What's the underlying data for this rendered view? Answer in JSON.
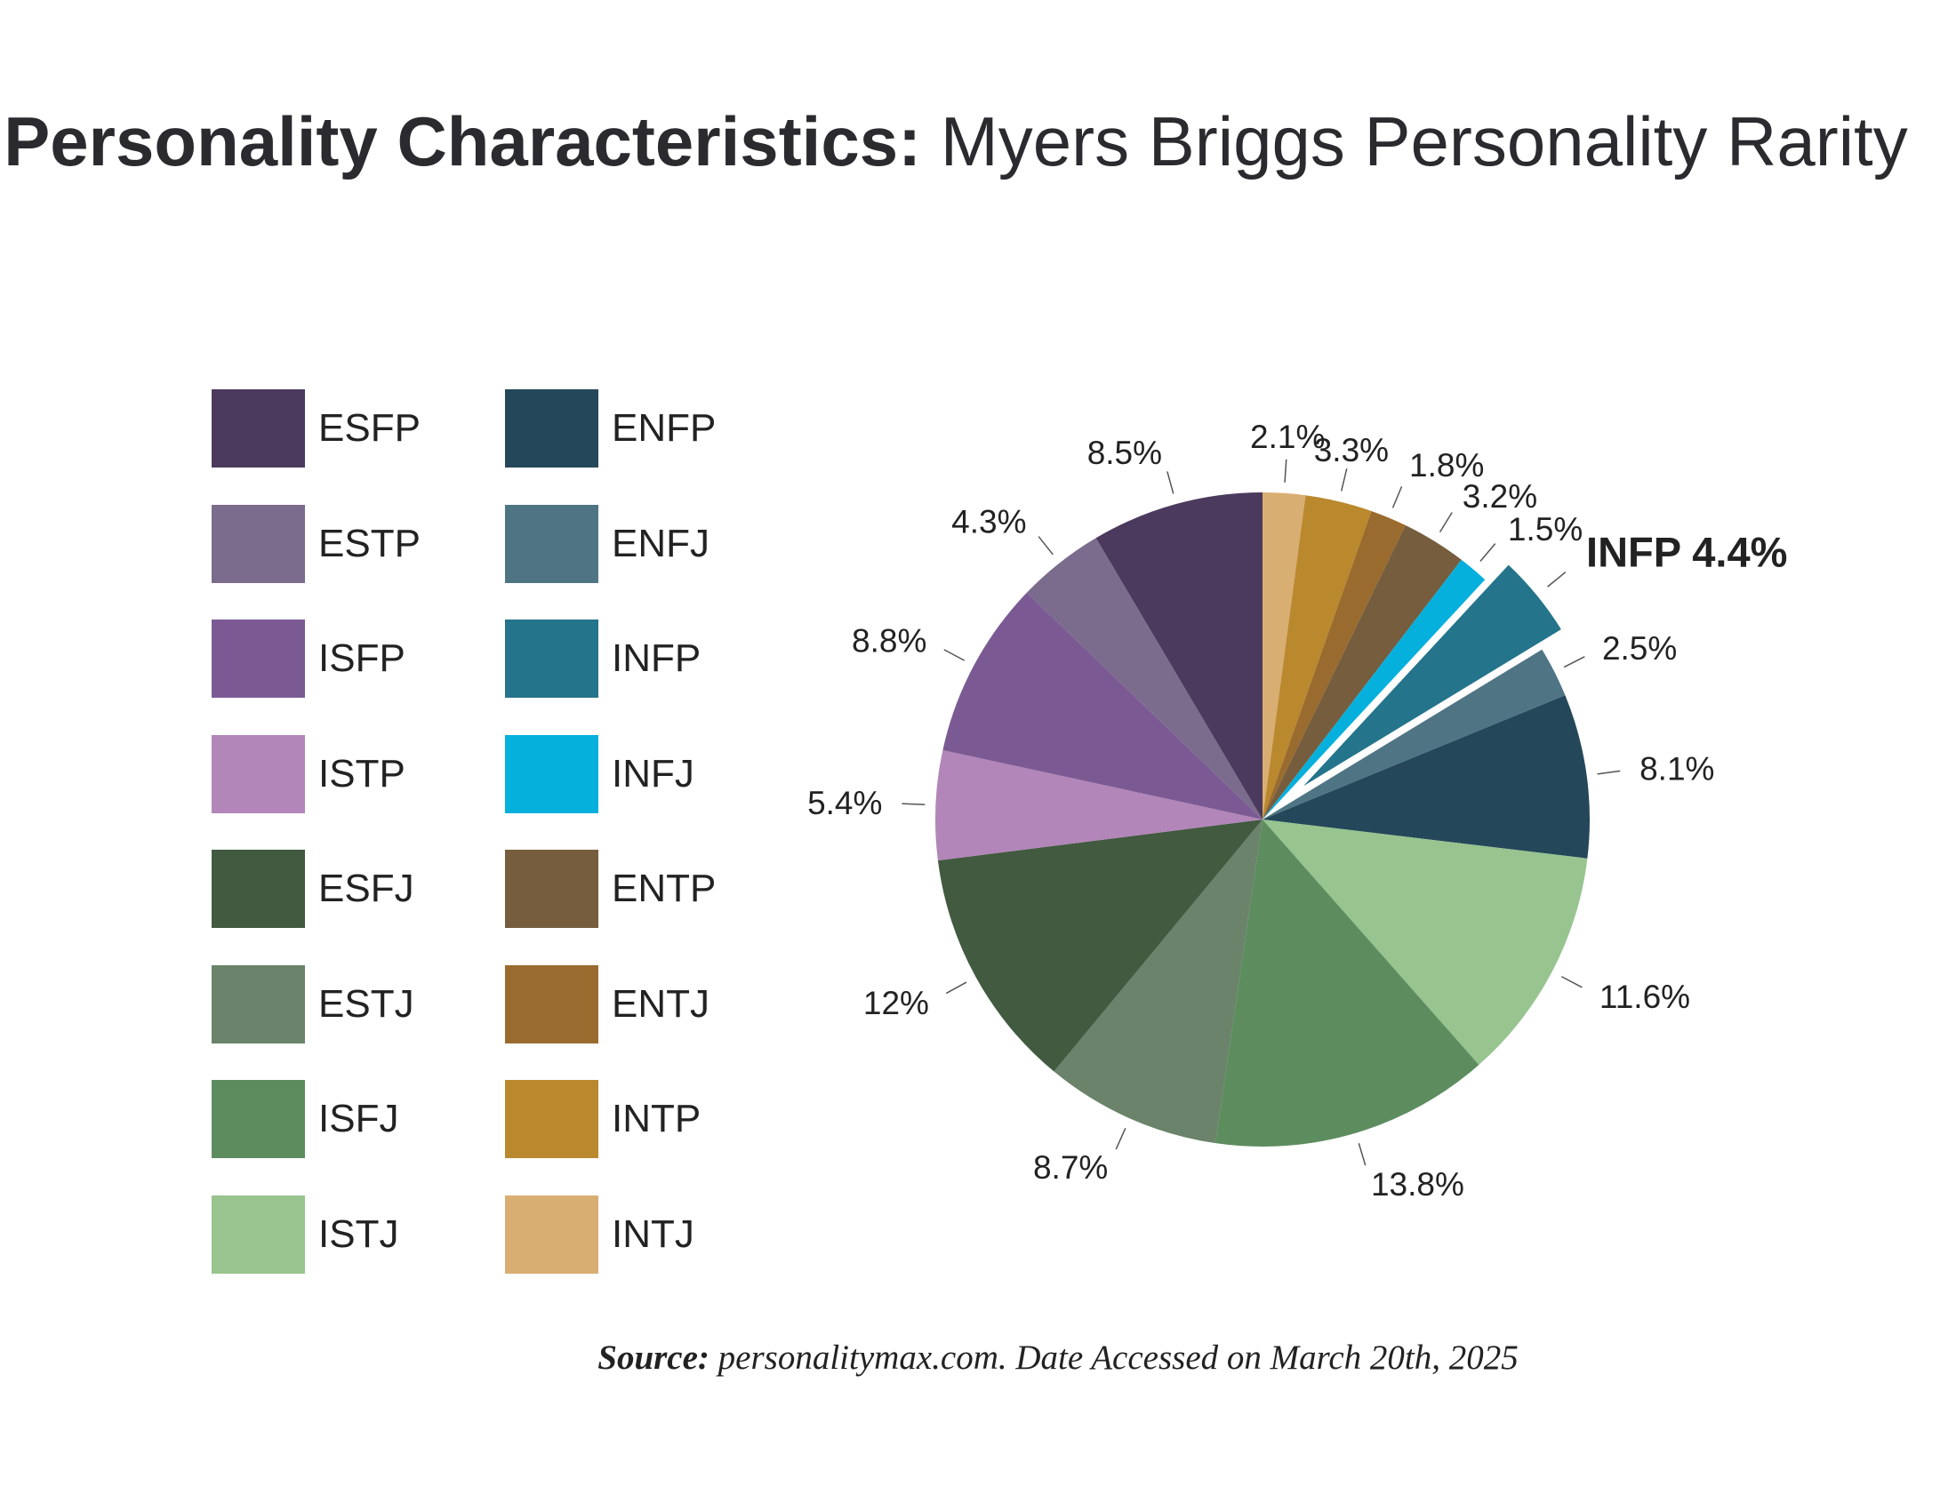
{
  "header": {
    "title_bold": "Personality Characteristics:",
    "title_rest": " Myers Briggs Personality Rarity"
  },
  "footer": {
    "source_label": "Source:",
    "source_text": " personalitymax.com. Date Accessed on March 20th, 2025"
  },
  "chart_data": {
    "type": "pie",
    "title": "Personality Characteristics: Myers Briggs Personality Rarity",
    "unit": "%",
    "slices": [
      {
        "name": "INTJ",
        "value": 2.1,
        "label": "2.1%",
        "color": "#d9ae72"
      },
      {
        "name": "INTP",
        "value": 3.3,
        "label": "3.3%",
        "color": "#ba892e"
      },
      {
        "name": "ENTJ",
        "value": 1.8,
        "label": "1.8%",
        "color": "#9a6b2e"
      },
      {
        "name": "ENTP",
        "value": 3.2,
        "label": "3.2%",
        "color": "#755d3e"
      },
      {
        "name": "INFJ",
        "value": 1.5,
        "label": "1.5%",
        "color": "#06b0dd"
      },
      {
        "name": "INFP",
        "value": 4.4,
        "label": "INFP 4.4%",
        "color": "#24748b",
        "exploded": true,
        "highlight": true
      },
      {
        "name": "ENFJ",
        "value": 2.5,
        "label": "2.5%",
        "color": "#4f7585"
      },
      {
        "name": "ENFP",
        "value": 8.1,
        "label": "8.1%",
        "color": "#25475a"
      },
      {
        "name": "ISTJ",
        "value": 11.6,
        "label": "11.6%",
        "color": "#97c48f"
      },
      {
        "name": "ISFJ",
        "value": 13.8,
        "label": "13.8%",
        "color": "#5d8d5f"
      },
      {
        "name": "ESTJ",
        "value": 8.7,
        "label": "8.7%",
        "color": "#6a836a"
      },
      {
        "name": "ESFJ",
        "value": 12,
        "label": "12%",
        "color": "#415a40"
      },
      {
        "name": "ISTP",
        "value": 5.4,
        "label": "5.4%",
        "color": "#b286b8"
      },
      {
        "name": "ISFP",
        "value": 8.8,
        "label": "8.8%",
        "color": "#7b5a94"
      },
      {
        "name": "ESTP",
        "value": 4.3,
        "label": "4.3%",
        "color": "#7b6b8c"
      },
      {
        "name": "ESFP",
        "value": 8.5,
        "label": "8.5%",
        "color": "#4b3a5e"
      }
    ],
    "legend": {
      "placement": "left",
      "columns": [
        [
          {
            "name": "ESFP",
            "color": "#4b3a5e"
          },
          {
            "name": "ESTP",
            "color": "#7b6b8c"
          },
          {
            "name": "ISFP",
            "color": "#7b5a94"
          },
          {
            "name": "ISTP",
            "color": "#b286b8"
          },
          {
            "name": "ESFJ",
            "color": "#415a40"
          },
          {
            "name": "ESTJ",
            "color": "#6a836a"
          },
          {
            "name": "ISFJ",
            "color": "#5d8d5f"
          },
          {
            "name": "ISTJ",
            "color": "#97c48f"
          }
        ],
        [
          {
            "name": "ENFP",
            "color": "#25475a"
          },
          {
            "name": "ENFJ",
            "color": "#4f7585"
          },
          {
            "name": "INFP",
            "color": "#24748b"
          },
          {
            "name": "INFJ",
            "color": "#06b0dd"
          },
          {
            "name": "ENTP",
            "color": "#755d3e"
          },
          {
            "name": "ENTJ",
            "color": "#9a6b2e"
          },
          {
            "name": "INTP",
            "color": "#ba892e"
          },
          {
            "name": "INTJ",
            "color": "#d9ae72"
          }
        ]
      ]
    }
  }
}
